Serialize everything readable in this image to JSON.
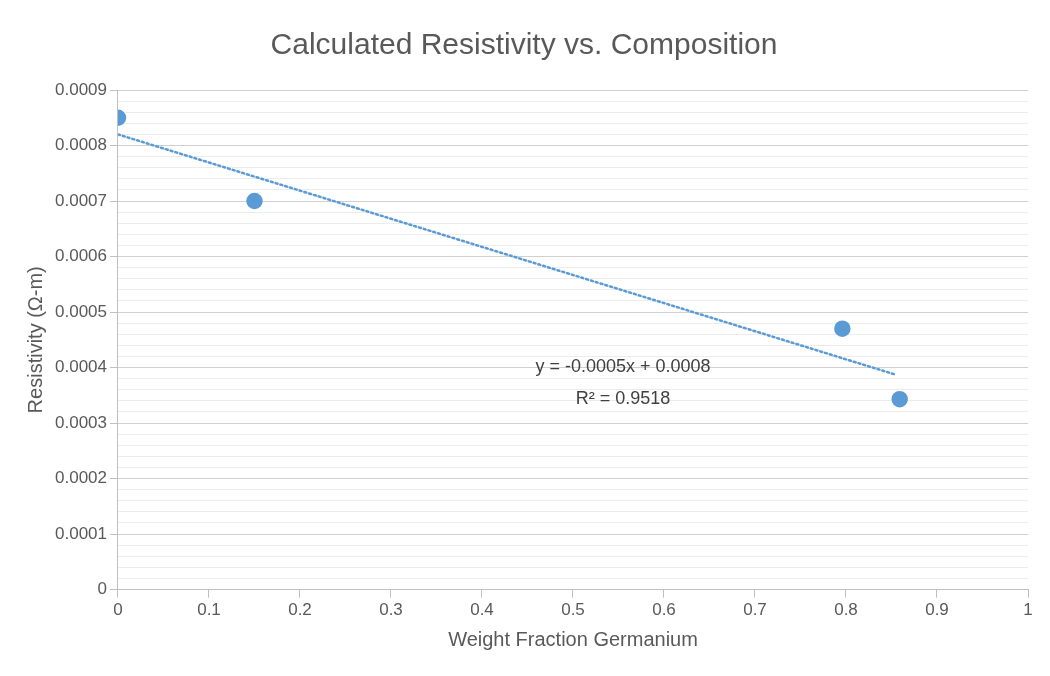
{
  "chart_data": {
    "type": "scatter",
    "title": "Calculated Resistivity vs. Composition",
    "xlabel": "Weight Fraction Germanium",
    "ylabel": "Resistivity (Ω-m)",
    "series": [
      {
        "type": "scatter",
        "color": "#5b9bd5",
        "x": [
          0,
          0.15,
          0.796,
          0.859
        ],
        "values": [
          0.00085,
          0.0007,
          0.00047,
          0.000343
        ],
        "marker": "circle"
      },
      {
        "type": "line",
        "color": "#5b9bd5",
        "x": [
          0,
          0.855
        ],
        "values": [
          0.00082,
          0.000387
        ],
        "marker": "none",
        "line_style": "dotted"
      }
    ],
    "xlim": [
      0,
      1
    ],
    "xticks": [
      0,
      0.1,
      0.2,
      0.3,
      0.4,
      0.5,
      0.6,
      0.7,
      0.8,
      0.9,
      1
    ],
    "ylim": [
      0,
      0.0009
    ],
    "yticks": [
      0,
      {
        "value": 2e-05,
        "label": null
      },
      {
        "value": 4e-05,
        "label": null
      },
      {
        "value": 6e-05,
        "label": null
      },
      {
        "value": 8e-05,
        "label": null
      },
      0.0001,
      {
        "value": 0.00012,
        "label": null
      },
      {
        "value": 0.00014,
        "label": null
      },
      {
        "value": 0.00016,
        "label": null
      },
      {
        "value": 0.00018,
        "label": null
      },
      0.0002,
      {
        "value": 0.00022,
        "label": null
      },
      {
        "value": 0.00024,
        "label": null
      },
      {
        "value": 0.00026,
        "label": null
      },
      {
        "value": 0.00028,
        "label": null
      },
      0.0003,
      {
        "value": 0.00032,
        "label": null
      },
      {
        "value": 0.00034,
        "label": null
      },
      {
        "value": 0.00036,
        "label": null
      },
      {
        "value": 0.00038,
        "label": null
      },
      0.0004,
      {
        "value": 0.00042,
        "label": null
      },
      {
        "value": 0.00044,
        "label": null
      },
      {
        "value": 0.00046,
        "label": null
      },
      {
        "value": 0.00048,
        "label": null
      },
      0.0005,
      {
        "value": 0.00052,
        "label": null
      },
      {
        "value": 0.00054,
        "label": null
      },
      {
        "value": 0.00056,
        "label": null
      },
      {
        "value": 0.00058,
        "label": null
      },
      0.0006,
      {
        "value": 0.00062,
        "label": null
      },
      {
        "value": 0.00064,
        "label": null
      },
      {
        "value": 0.00066,
        "label": null
      },
      {
        "value": 0.00068,
        "label": null
      },
      0.0007,
      {
        "value": 0.00072,
        "label": null
      },
      {
        "value": 0.00074,
        "label": null
      },
      {
        "value": 0.00076,
        "label": null
      },
      {
        "value": 0.00078,
        "label": null
      },
      0.0008,
      {
        "value": 0.00082,
        "label": null
      },
      {
        "value": 0.00084,
        "label": null
      },
      {
        "value": 0.00086,
        "label": null
      },
      {
        "value": 0.00088,
        "label": null
      },
      0.0009
    ],
    "grid": "y",
    "legend": false,
    "annotations": [
      "y = -0.0005x + 0.0008",
      "R² = 0.9518"
    ]
  }
}
